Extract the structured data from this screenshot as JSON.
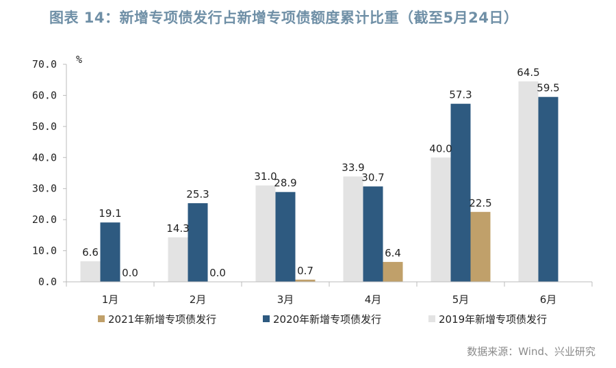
{
  "title": "图表 14：新增专项债发行占新增专项债额度累计比重（截至5月24日）",
  "source": "数据来源：Wind、兴业研究",
  "colors": {
    "s2021": "#c0a06a",
    "s2020": "#2e5a80",
    "s2019": "#e3e3e3",
    "axis": "#bbbbbb"
  },
  "chart_data": {
    "type": "bar",
    "title": "图表 14：新增专项债发行占新增专项债额度累计比重（截至5月24日）",
    "ylabel": "%",
    "xlabel": "",
    "ylim": [
      0,
      70
    ],
    "yticks": [
      0,
      10,
      20,
      30,
      40,
      50,
      60,
      70
    ],
    "ytick_labels": [
      "0.0",
      "10.0",
      "20.0",
      "30.0",
      "40.0",
      "50.0",
      "60.0",
      "70.0"
    ],
    "categories": [
      "1月",
      "2月",
      "3月",
      "4月",
      "5月",
      "6月"
    ],
    "legend_position": "bottom",
    "series": [
      {
        "name": "2019年新增专项债发行",
        "key": "s2019",
        "values": [
          6.6,
          14.3,
          31.0,
          33.9,
          40.0,
          64.5
        ],
        "labels": [
          "6.6",
          "14.3",
          "31.0",
          "33.9",
          "40.0",
          "64.5"
        ]
      },
      {
        "name": "2020年新增专项债发行",
        "key": "s2020",
        "values": [
          19.1,
          25.3,
          28.9,
          30.7,
          57.3,
          59.5
        ],
        "labels": [
          "19.1",
          "25.3",
          "28.9",
          "30.7",
          "57.3",
          "59.5"
        ]
      },
      {
        "name": "2021年新增专项债发行",
        "key": "s2021",
        "values": [
          0.0,
          0.0,
          0.7,
          6.4,
          22.5,
          null
        ],
        "labels": [
          "0.0",
          "0.0",
          "0.7",
          "6.4",
          "22.5",
          null
        ]
      }
    ],
    "legend_order": [
      "s2021",
      "s2020",
      "s2019"
    ]
  }
}
